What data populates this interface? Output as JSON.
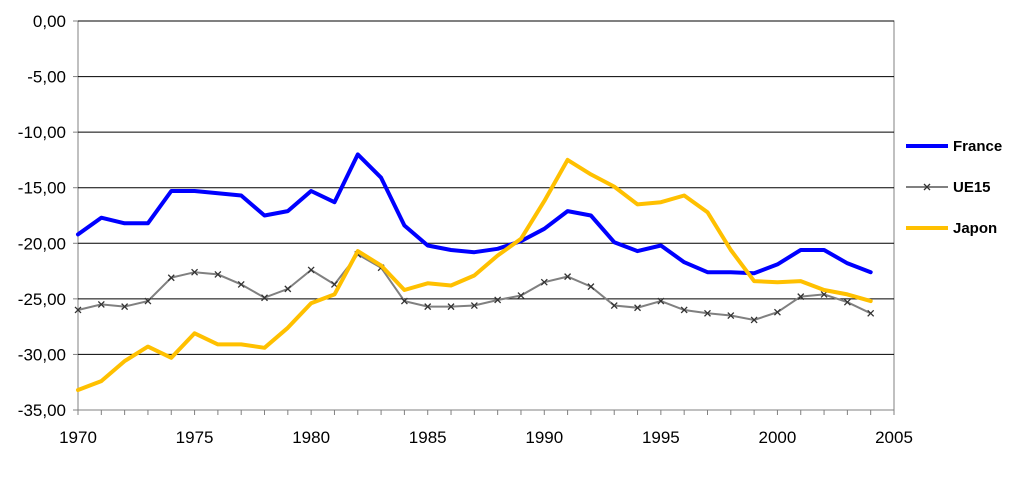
{
  "chart_data": {
    "type": "line",
    "title": "",
    "xlabel": "",
    "ylabel": "",
    "xlim": [
      1970,
      2005
    ],
    "ylim": [
      -35,
      0
    ],
    "x_ticks": [
      1970,
      1975,
      1980,
      1985,
      1990,
      1995,
      2000,
      2005
    ],
    "x_tick_labels": [
      "1970",
      "1975",
      "1980",
      "1985",
      "1990",
      "1995",
      "2000",
      "2005"
    ],
    "y_ticks": [
      0,
      -5,
      -10,
      -15,
      -20,
      -25,
      -30,
      -35
    ],
    "y_tick_labels": [
      "0,00",
      "-5,00",
      "-10,00",
      "-15,00",
      "-20,00",
      "-25,00",
      "-30,00",
      "-35,00"
    ],
    "grid": true,
    "legend_position": "right",
    "x": [
      1970,
      1971,
      1972,
      1973,
      1974,
      1975,
      1976,
      1977,
      1978,
      1979,
      1980,
      1981,
      1982,
      1983,
      1984,
      1985,
      1986,
      1987,
      1988,
      1989,
      1990,
      1991,
      1992,
      1993,
      1994,
      1995,
      1996,
      1997,
      1998,
      1999,
      2000,
      2001,
      2002,
      2003,
      2004
    ],
    "series": [
      {
        "name": "France",
        "color": "#0000ff",
        "style": "thick",
        "values": [
          -19.2,
          -17.7,
          -18.2,
          -18.2,
          -15.3,
          -15.3,
          -15.5,
          -15.7,
          -17.5,
          -17.1,
          -15.3,
          -16.3,
          -12.0,
          -14.1,
          -18.4,
          -20.2,
          -20.6,
          -20.8,
          -20.5,
          -19.8,
          -18.7,
          -17.1,
          -17.5,
          -19.9,
          -20.7,
          -20.2,
          -21.7,
          -22.6,
          -22.6,
          -22.7,
          -21.9,
          -20.6,
          -20.6,
          -21.8,
          -22.6
        ]
      },
      {
        "name": "UE15",
        "color": "#808080",
        "style": "marker",
        "values": [
          -26.0,
          -25.5,
          -25.7,
          -25.2,
          -23.1,
          -22.6,
          -22.8,
          -23.7,
          -24.9,
          -24.1,
          -22.4,
          -23.7,
          -21.0,
          -22.2,
          -25.2,
          -25.7,
          -25.7,
          -25.6,
          -25.1,
          -24.7,
          -23.5,
          -23.0,
          -23.9,
          -25.6,
          -25.8,
          -25.2,
          -26.0,
          -26.3,
          -26.5,
          -26.9,
          -26.2,
          -24.8,
          -24.6,
          -25.3,
          -26.3
        ]
      },
      {
        "name": "Japon",
        "color": "#ffc000",
        "style": "thick",
        "values": [
          -33.2,
          -32.4,
          -30.6,
          -29.3,
          -30.3,
          -28.1,
          -29.1,
          -29.1,
          -29.4,
          -27.6,
          -25.4,
          -24.6,
          -20.7,
          -22.0,
          -24.2,
          -23.6,
          -23.8,
          -22.9,
          -21.1,
          -19.6,
          -16.2,
          -12.5,
          -13.8,
          -14.9,
          -16.5,
          -16.3,
          -15.7,
          -17.2,
          -20.6,
          -23.4,
          -23.5,
          -23.4,
          -24.2,
          -24.6,
          -25.2
        ]
      }
    ]
  }
}
